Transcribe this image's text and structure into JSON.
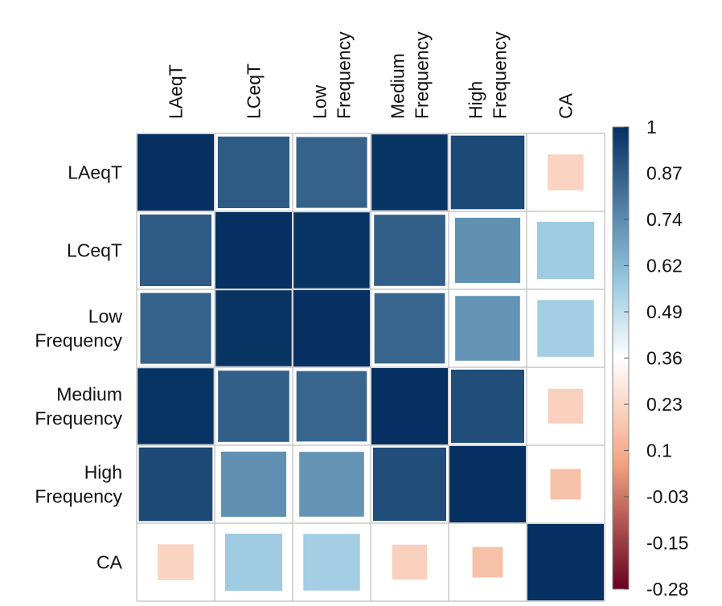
{
  "chart_data": {
    "type": "heatmap",
    "variables": [
      [
        "LAeqT"
      ],
      [
        "LCeqT"
      ],
      [
        "Low",
        "Frequency"
      ],
      [
        "Medium",
        "Frequency"
      ],
      [
        "High",
        "Frequency"
      ],
      [
        "CA"
      ]
    ],
    "matrix": [
      [
        1.0,
        0.88,
        0.86,
        0.99,
        0.93,
        0.22
      ],
      [
        0.88,
        1.0,
        0.99,
        0.87,
        0.73,
        0.56
      ],
      [
        0.86,
        0.99,
        1.0,
        0.85,
        0.72,
        0.55
      ],
      [
        0.99,
        0.87,
        0.85,
        1.0,
        0.92,
        0.21
      ],
      [
        0.93,
        0.73,
        0.72,
        0.92,
        1.0,
        0.16
      ],
      [
        0.22,
        0.56,
        0.55,
        0.21,
        0.16,
        1.0
      ]
    ],
    "colorbar": {
      "min": -0.28,
      "max": 1,
      "midpoint": 0.36,
      "ticks": [
        "1",
        "0.87",
        "0.74",
        "0.62",
        "0.49",
        "0.36",
        "0.23",
        "0.1",
        "-0.03",
        "-0.15",
        "-0.28"
      ],
      "colors": {
        "low": "#67001f",
        "mid_low": "#f4a582",
        "mid": "#ffffff",
        "mid_high": "#92c5de",
        "high": "#053061"
      }
    },
    "cell_size_encodes": "absolute correlation magnitude",
    "grid": true,
    "legend_position": "right"
  }
}
